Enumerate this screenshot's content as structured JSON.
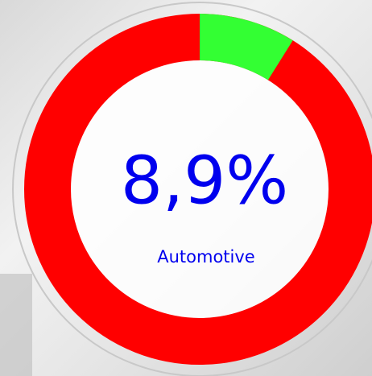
{
  "chart_data": {
    "type": "donut",
    "categories": [
      "Automotive"
    ],
    "values": [
      8.9
    ],
    "value_labels": [
      "8,9%"
    ],
    "color": "#33ff33",
    "track_color": "#ff0000",
    "text_color": "#0000ee"
  }
}
